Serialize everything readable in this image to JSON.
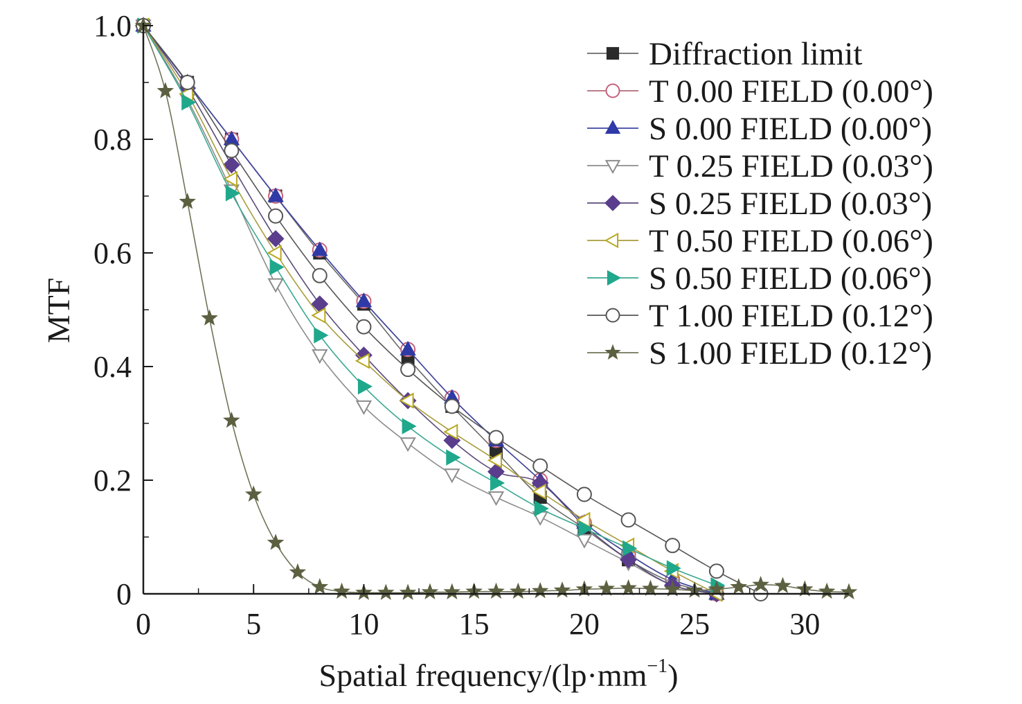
{
  "chart_data": {
    "type": "line",
    "xlabel": "Spatial frequency/(lp·mm",
    "xlabel_sup": "−1",
    "xlabel_close": ")",
    "ylabel": "MTF",
    "xlim": [
      0,
      32
    ],
    "ylim": [
      0,
      1.0
    ],
    "x_ticks": [
      0,
      5,
      10,
      15,
      20,
      25,
      30
    ],
    "x_tick_labels": [
      "0",
      "5",
      "10",
      "15",
      "20",
      "25",
      "30"
    ],
    "y_ticks": [
      0,
      0.2,
      0.4,
      0.6,
      0.8,
      1.0
    ],
    "y_tick_labels": [
      "0",
      "0.2",
      "0.4",
      "0.6",
      "0.8",
      "1.0"
    ],
    "legend_position": "top-right",
    "grid": false,
    "series": [
      {
        "name": "Diffraction limit",
        "marker": "square",
        "fill": "#2b2b2b",
        "stroke": "#2b2b2b",
        "line": "#6a6a6a",
        "x": [
          0,
          2,
          4,
          6,
          8,
          10,
          12,
          14,
          16,
          18,
          20,
          22,
          24,
          26
        ],
        "y": [
          1.0,
          0.9,
          0.8,
          0.7,
          0.6,
          0.51,
          0.415,
          0.33,
          0.25,
          0.17,
          0.115,
          0.06,
          0.02,
          0.0
        ]
      },
      {
        "name": "T 0.00 FIELD (0.00°)",
        "marker": "circle-open",
        "fill": "#ffffff",
        "stroke": "#c4627a",
        "line": "#b06a78",
        "x": [
          0,
          2,
          4,
          6,
          8,
          10,
          12,
          14,
          16,
          18,
          20,
          22,
          24,
          26
        ],
        "y": [
          1.0,
          0.9,
          0.8,
          0.7,
          0.605,
          0.515,
          0.43,
          0.345,
          0.27,
          0.2,
          0.125,
          0.07,
          0.025,
          0.0
        ]
      },
      {
        "name": "S 0.00 FIELD (0.00°)",
        "marker": "triangle-up",
        "fill": "#2f3aa6",
        "stroke": "#2f3aa6",
        "line": "#3c46a0",
        "x": [
          0,
          2,
          4,
          6,
          8,
          10,
          12,
          14,
          16,
          18,
          20,
          22,
          24,
          26
        ],
        "y": [
          1.0,
          0.9,
          0.8,
          0.7,
          0.605,
          0.515,
          0.43,
          0.345,
          0.27,
          0.2,
          0.125,
          0.07,
          0.025,
          0.0
        ]
      },
      {
        "name": "T 0.25 FIELD (0.03°)",
        "marker": "triangle-down-open",
        "fill": "#ffffff",
        "stroke": "#8c8c8c",
        "line": "#8c8c8c",
        "x": [
          0,
          2,
          4,
          6,
          8,
          10,
          12,
          14,
          16,
          18,
          20,
          22,
          24,
          26
        ],
        "y": [
          1.0,
          0.87,
          0.71,
          0.545,
          0.42,
          0.33,
          0.265,
          0.21,
          0.17,
          0.135,
          0.095,
          0.055,
          0.015,
          0.0
        ]
      },
      {
        "name": "S 0.25 FIELD (0.03°)",
        "marker": "diamond",
        "fill": "#5a3d8c",
        "stroke": "#5a3d8c",
        "line": "#5a4a7a",
        "x": [
          0,
          2,
          4,
          6,
          8,
          10,
          12,
          14,
          16,
          18,
          20,
          22,
          24,
          26
        ],
        "y": [
          1.0,
          0.89,
          0.755,
          0.625,
          0.51,
          0.42,
          0.34,
          0.27,
          0.215,
          0.195,
          0.12,
          0.06,
          0.015,
          0.0
        ]
      },
      {
        "name": "T 0.50 FIELD (0.06°)",
        "marker": "triangle-left-open",
        "fill": "#ffffff",
        "stroke": "#b8a820",
        "line": "#a89c3c",
        "x": [
          0,
          2,
          4,
          6,
          8,
          10,
          12,
          14,
          16,
          18,
          20,
          22,
          24,
          26
        ],
        "y": [
          1.0,
          0.88,
          0.73,
          0.6,
          0.49,
          0.41,
          0.34,
          0.285,
          0.235,
          0.18,
          0.13,
          0.085,
          0.04,
          0.0
        ]
      },
      {
        "name": "S 0.50 FIELD (0.06°)",
        "marker": "triangle-right",
        "fill": "#1fa88c",
        "stroke": "#1fa88c",
        "line": "#3aa890",
        "x": [
          0,
          2,
          4,
          6,
          8,
          10,
          12,
          14,
          16,
          18,
          20,
          22,
          24,
          26
        ],
        "y": [
          1.0,
          0.865,
          0.705,
          0.575,
          0.455,
          0.365,
          0.295,
          0.24,
          0.195,
          0.15,
          0.115,
          0.08,
          0.045,
          0.015
        ]
      },
      {
        "name": "T 1.00 FIELD (0.12°)",
        "marker": "circle-open",
        "fill": "#ffffff",
        "stroke": "#555555",
        "line": "#555555",
        "x": [
          0,
          2,
          4,
          6,
          8,
          10,
          12,
          14,
          16,
          18,
          20,
          22,
          24,
          26,
          28
        ],
        "y": [
          1.0,
          0.9,
          0.78,
          0.665,
          0.56,
          0.47,
          0.395,
          0.33,
          0.275,
          0.225,
          0.175,
          0.13,
          0.085,
          0.04,
          0.0
        ]
      },
      {
        "name": "S 1.00 FIELD (0.12°)",
        "marker": "star",
        "fill": "#5c6040",
        "stroke": "#5c6040",
        "line": "#707458",
        "x": [
          0,
          1,
          2,
          3,
          4,
          5,
          6,
          7,
          8,
          9,
          10,
          11,
          12,
          13,
          14,
          15,
          16,
          17,
          18,
          19,
          20,
          21,
          22,
          23,
          24,
          25,
          26,
          27,
          28,
          29,
          30,
          31,
          32
        ],
        "y": [
          1.0,
          0.885,
          0.69,
          0.485,
          0.305,
          0.175,
          0.09,
          0.038,
          0.012,
          0.004,
          0.002,
          0.002,
          0.002,
          0.003,
          0.003,
          0.004,
          0.004,
          0.004,
          0.005,
          0.006,
          0.008,
          0.009,
          0.01,
          0.009,
          0.008,
          0.006,
          0.008,
          0.012,
          0.016,
          0.014,
          0.008,
          0.004,
          0.003
        ]
      }
    ]
  }
}
